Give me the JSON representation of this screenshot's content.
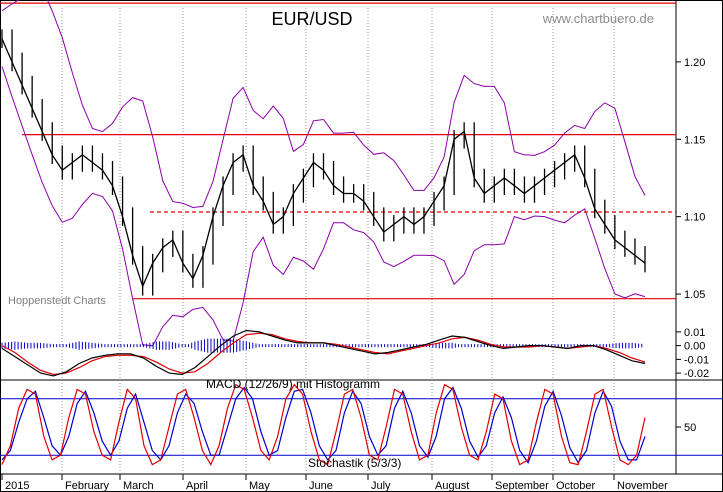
{
  "chart_data": [
    {
      "type": "line",
      "title": "EUR/USD",
      "watermark": "www.chartbuero.de",
      "source_label": "Hoppenstedt Charts",
      "xlabels": [
        "2015",
        "February",
        "March",
        "April",
        "May",
        "June",
        "July",
        "August",
        "September",
        "October",
        "November"
      ],
      "yticks": [
        "1.20",
        "1.15",
        "1.10",
        "1.05"
      ],
      "ylim": [
        1.03,
        1.24
      ],
      "colors": {
        "price": "#000000",
        "bollinger": "#8a00a8",
        "support_resistance": "#e00000",
        "grid": "#999999"
      },
      "horizontal_lines": [
        {
          "value": 1.238,
          "style": "solid"
        },
        {
          "value": 1.153,
          "style": "solid"
        },
        {
          "value": 1.103,
          "style": "dashed"
        },
        {
          "value": 1.047,
          "style": "solid"
        }
      ],
      "series": [
        {
          "values": [
            1.215,
            1.2,
            1.185,
            1.17,
            1.155,
            1.14,
            1.13,
            1.135,
            1.14,
            1.135,
            1.13,
            1.12,
            1.1,
            1.075,
            1.055,
            1.07,
            1.08,
            1.085,
            1.07,
            1.06,
            1.075,
            1.1,
            1.12,
            1.135,
            1.14,
            1.12,
            1.11,
            1.095,
            1.1,
            1.115,
            1.125,
            1.135,
            1.13,
            1.12,
            1.115,
            1.115,
            1.11,
            1.1,
            1.09,
            1.095,
            1.1,
            1.095,
            1.1,
            1.11,
            1.12,
            1.15,
            1.155,
            1.125,
            1.115,
            1.12,
            1.125,
            1.12,
            1.115,
            1.12,
            1.125,
            1.13,
            1.135,
            1.14,
            1.125,
            1.105,
            1.095,
            1.085,
            1.08,
            1.075,
            1.07
          ]
        }
      ]
    },
    {
      "type": "line",
      "label": "MACD (12/26/9) mit Histogramm",
      "yticks": [
        "0.01",
        "0.00",
        "-0.01",
        "-0.02"
      ],
      "ylim": [
        -0.025,
        0.015
      ],
      "colors": {
        "macd": "#000000",
        "signal": "#e00000",
        "histogram": "#0000c8"
      },
      "series": [
        {
          "values": [
            -0.002,
            -0.008,
            -0.014,
            -0.02,
            -0.022,
            -0.019,
            -0.013,
            -0.009,
            -0.007,
            -0.006,
            -0.006,
            -0.009,
            -0.015,
            -0.02,
            -0.021,
            -0.016,
            -0.008,
            0.0,
            0.007,
            0.011,
            0.01,
            0.007,
            0.004,
            0.002,
            0.002,
            0.002,
            0.0,
            -0.002,
            -0.004,
            -0.006,
            -0.005,
            -0.003,
            -0.001,
            0.001,
            0.004,
            0.007,
            0.006,
            0.003,
            0.0,
            -0.002,
            -0.001,
            0.0,
            0.0,
            -0.001,
            -0.002,
            0.0,
            0.0,
            -0.003,
            -0.007,
            -0.011,
            -0.013
          ]
        },
        {
          "values": [
            0.0,
            -0.005,
            -0.012,
            -0.018,
            -0.021,
            -0.02,
            -0.016,
            -0.011,
            -0.008,
            -0.007,
            -0.007,
            -0.008,
            -0.012,
            -0.017,
            -0.02,
            -0.019,
            -0.013,
            -0.005,
            0.002,
            0.008,
            0.009,
            0.008,
            0.005,
            0.003,
            0.002,
            0.002,
            0.001,
            -0.001,
            -0.003,
            -0.005,
            -0.006,
            -0.004,
            -0.002,
            0.0,
            0.002,
            0.005,
            0.006,
            0.004,
            0.001,
            -0.001,
            -0.001,
            -0.001,
            0.0,
            -0.001,
            -0.002,
            -0.001,
            0.0,
            -0.002,
            -0.005,
            -0.009,
            -0.012
          ]
        }
      ]
    },
    {
      "type": "line",
      "label": "Stochastik (5/3/3)",
      "yticks": [
        "50"
      ],
      "ylim": [
        0,
        100
      ],
      "reference_levels": [
        80,
        20
      ],
      "colors": {
        "k": "#e00000",
        "d": "#0000c8",
        "reference": "#0000c8"
      },
      "series": [
        {
          "values": [
            10,
            30,
            70,
            90,
            85,
            40,
            15,
            20,
            60,
            90,
            85,
            45,
            20,
            15,
            55,
            90,
            80,
            30,
            10,
            15,
            50,
            85,
            90,
            60,
            25,
            10,
            30,
            70,
            95,
            90,
            60,
            25,
            15,
            40,
            80,
            95,
            85,
            45,
            15,
            10,
            45,
            85,
            90,
            60,
            20,
            15,
            50,
            90,
            85,
            45,
            15,
            20,
            65,
            95,
            90,
            50,
            20,
            15,
            45,
            85,
            80,
            35,
            10,
            15,
            55,
            90,
            85,
            40,
            12,
            10,
            45,
            85,
            90,
            50,
            15,
            10,
            20,
            60
          ]
        },
        {
          "values": [
            15,
            25,
            55,
            80,
            88,
            60,
            30,
            20,
            40,
            75,
            88,
            65,
            35,
            20,
            35,
            70,
            85,
            55,
            25,
            15,
            30,
            65,
            85,
            75,
            45,
            20,
            20,
            50,
            80,
            92,
            80,
            45,
            20,
            25,
            60,
            88,
            90,
            65,
            30,
            15,
            25,
            65,
            88,
            75,
            40,
            20,
            30,
            70,
            88,
            65,
            30,
            18,
            40,
            80,
            92,
            70,
            35,
            18,
            30,
            65,
            82,
            60,
            25,
            12,
            35,
            72,
            88,
            62,
            28,
            12,
            25,
            65,
            88,
            72,
            35,
            15,
            15,
            40
          ]
        }
      ]
    }
  ]
}
